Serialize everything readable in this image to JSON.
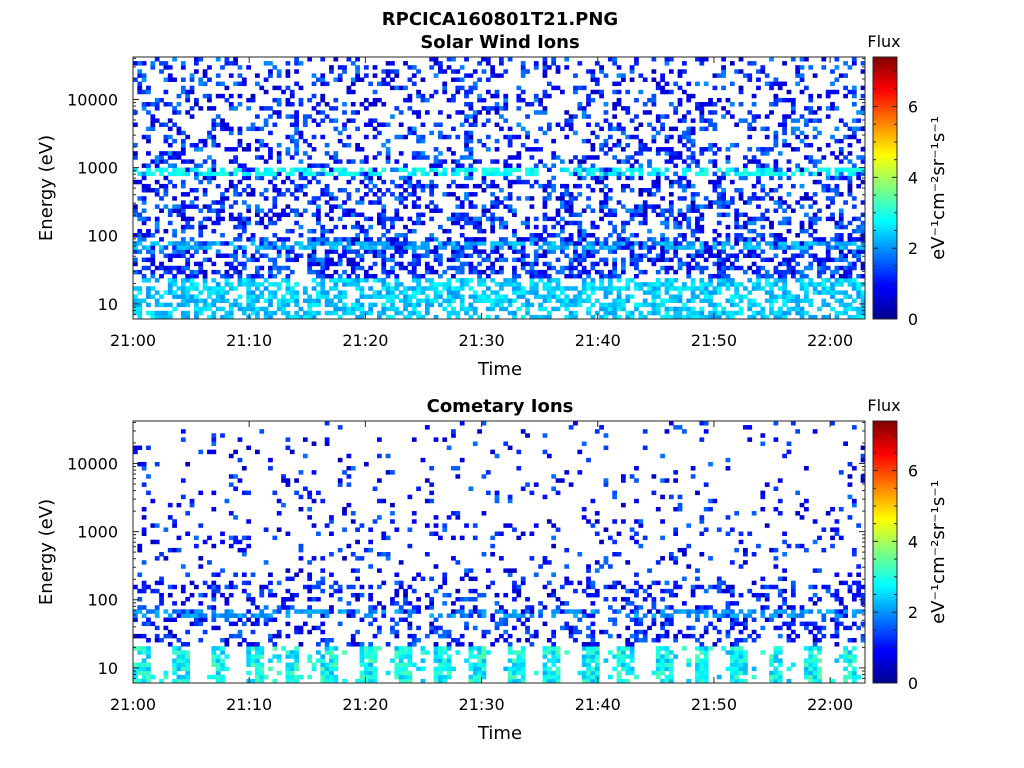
{
  "figure": {
    "title": "RPCICA160801T21.PNG"
  },
  "chart_data": [
    {
      "type": "heatmap",
      "title": "Solar Wind Ions",
      "xlabel": "Time",
      "ylabel": "Energy (eV)",
      "xticks": [
        "21:00",
        "21:10",
        "21:20",
        "21:30",
        "21:40",
        "21:50",
        "22:00"
      ],
      "xlim": [
        "21:00",
        "22:03"
      ],
      "yscale": "log",
      "yticks": [
        "10",
        "100",
        "1000",
        "10000"
      ],
      "ylim": [
        6,
        42000
      ],
      "colorbar": {
        "title": "Flux",
        "label": "eV⁻¹cm⁻²sr⁻¹s⁻¹",
        "ticks": [
          "0",
          "2",
          "4",
          "6"
        ],
        "range": [
          0,
          7.4
        ],
        "colormap": "jet"
      },
      "pattern": {
        "low_energy_levels": {
          "energy_range_eV": [
            6,
            25
          ],
          "flux_range": [
            2.0,
            2.8
          ]
        },
        "ion_bands": [
          {
            "energy_eV": 850,
            "flux": 2.8
          },
          {
            "energy_eV": 70,
            "flux": 2.2
          }
        ],
        "background": {
          "energy_range_eV": [
            25,
            42000
          ],
          "flux_range": [
            0.4,
            2.0
          ]
        }
      }
    },
    {
      "type": "heatmap",
      "title": "Cometary Ions",
      "xlabel": "Time",
      "ylabel": "Energy (eV)",
      "xticks": [
        "21:00",
        "21:10",
        "21:20",
        "21:30",
        "21:40",
        "21:50",
        "22:00"
      ],
      "xlim": [
        "21:00",
        "22:03"
      ],
      "yscale": "log",
      "yticks": [
        "10",
        "100",
        "1000",
        "10000"
      ],
      "ylim": [
        6,
        42000
      ],
      "colorbar": {
        "title": "Flux",
        "label": "eV⁻¹cm⁻²sr⁻¹s⁻¹",
        "ticks": [
          "0",
          "2",
          "4",
          "6"
        ],
        "range": [
          0,
          7.4
        ],
        "colormap": "jet"
      },
      "pattern": {
        "low_energy_levels": {
          "energy_range_eV": [
            6,
            22
          ],
          "flux_range": [
            2.2,
            3.4
          ],
          "period_min": 3.2
        },
        "ion_bands": [
          {
            "energy_eV": 65,
            "flux": 2.0
          }
        ],
        "background": {
          "energy_range_eV": [
            22,
            42000
          ],
          "flux_range": [
            0.4,
            1.8
          ]
        }
      }
    }
  ]
}
